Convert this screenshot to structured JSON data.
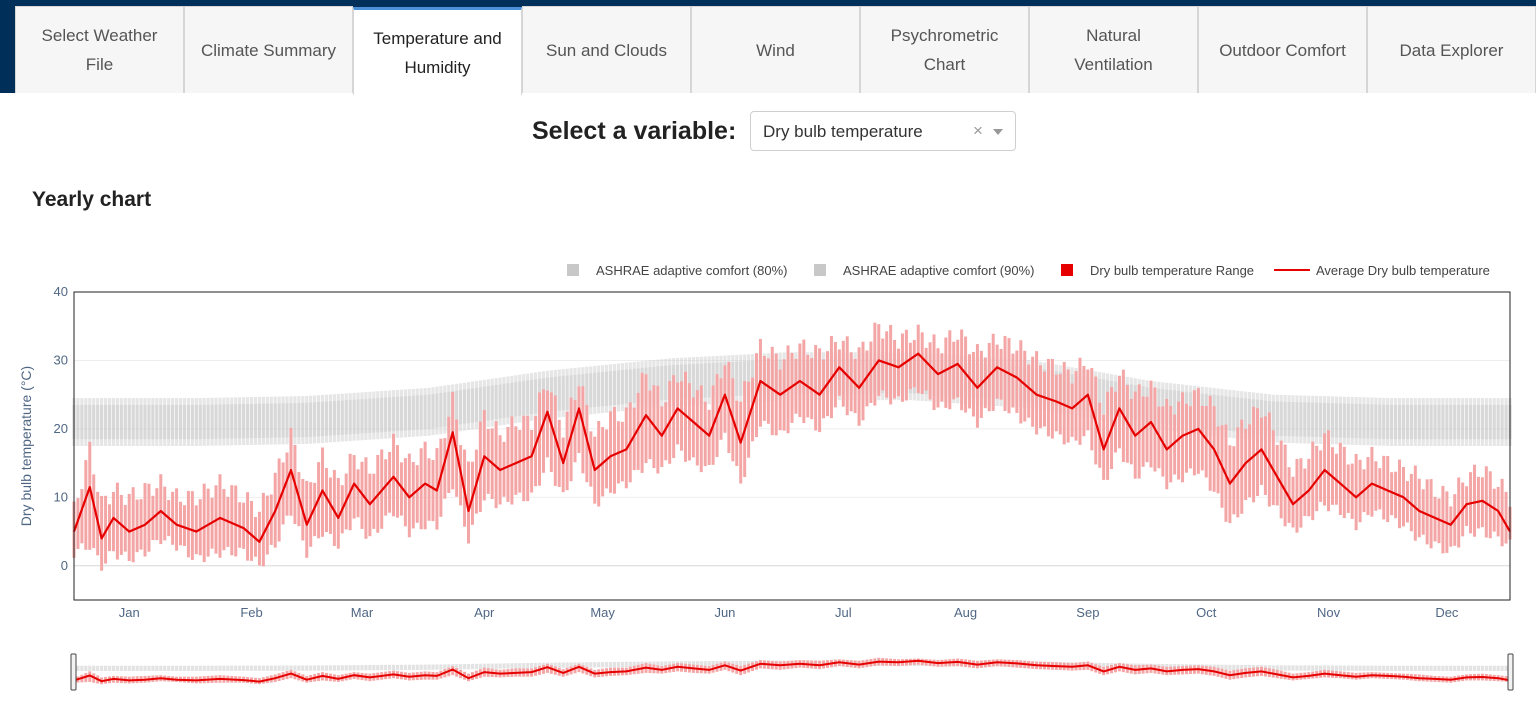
{
  "tabs": [
    {
      "label": "Select Weather\nFile",
      "active": false
    },
    {
      "label": "Climate Summary",
      "active": false
    },
    {
      "label": "Temperature and\nHumidity",
      "active": true
    },
    {
      "label": "Sun and Clouds",
      "active": false
    },
    {
      "label": "Wind",
      "active": false
    },
    {
      "label": "Psychrometric\nChart",
      "active": false
    },
    {
      "label": "Natural\nVentilation",
      "active": false
    },
    {
      "label": "Outdoor Comfort",
      "active": false
    },
    {
      "label": "Data Explorer",
      "active": false
    }
  ],
  "variable_selector": {
    "label": "Select a variable:",
    "value": "Dry bulb temperature",
    "clear_glyph": "×"
  },
  "section_title": "Yearly chart",
  "colors": {
    "nav_bg": "#00305a",
    "active_tab_accent": "#4a90d9",
    "comfort_band": "#c8c8c8",
    "range_bar": "#f4a6a6",
    "average_line": "#e60000"
  },
  "chart_data": {
    "type": "line",
    "ylabel": "Dry bulb temperature (°C)",
    "ylim": [
      -5,
      40
    ],
    "y_ticks": [
      0,
      10,
      20,
      30,
      40
    ],
    "x_ticks": [
      "Jan",
      "Feb",
      "Mar",
      "Apr",
      "May",
      "Jun",
      "Jul",
      "Aug",
      "Sep",
      "Oct",
      "Nov",
      "Dec"
    ],
    "legend_position": "top-right",
    "legend": [
      {
        "label": "ASHRAE adaptive comfort (80%)",
        "kind": "box",
        "color": "#c8c8c8"
      },
      {
        "label": "ASHRAE adaptive comfort (90%)",
        "kind": "box",
        "color": "#c8c8c8"
      },
      {
        "label": "Dry bulb temperature Range",
        "kind": "box",
        "color": "#e60000"
      },
      {
        "label": "Average Dry bulb temperature",
        "kind": "line",
        "color": "#e60000"
      }
    ],
    "comfort_80": {
      "days": [
        1,
        32,
        60,
        91,
        121,
        152,
        182,
        213,
        244,
        274,
        305,
        335,
        365
      ],
      "lower": [
        17.5,
        17.5,
        17.8,
        19.0,
        21.5,
        23.3,
        24.2,
        24.2,
        23.0,
        20.0,
        18.0,
        17.5,
        17.5
      ],
      "upper": [
        24.5,
        24.5,
        24.8,
        26.0,
        28.5,
        30.3,
        31.2,
        31.2,
        30.0,
        27.0,
        25.0,
        24.5,
        24.5
      ]
    },
    "comfort_90": {
      "days": [
        1,
        32,
        60,
        91,
        121,
        152,
        182,
        213,
        244,
        274,
        305,
        335,
        365
      ],
      "lower": [
        18.5,
        18.5,
        18.8,
        20.0,
        22.5,
        24.3,
        25.2,
        25.2,
        24.0,
        21.0,
        19.0,
        18.5,
        18.5
      ],
      "upper": [
        23.5,
        23.5,
        23.8,
        25.0,
        27.5,
        29.3,
        30.2,
        30.2,
        29.0,
        26.0,
        24.0,
        23.5,
        23.5
      ]
    },
    "series": [
      {
        "name": "Average Dry bulb temperature",
        "days": [
          1,
          5,
          8,
          11,
          15,
          19,
          23,
          27,
          32,
          38,
          44,
          48,
          52,
          56,
          60,
          64,
          68,
          72,
          76,
          82,
          86,
          90,
          93,
          97,
          101,
          105,
          109,
          113,
          117,
          121,
          125,
          129,
          133,
          137,
          141,
          146,
          150,
          154,
          158,
          162,
          166,
          170,
          175,
          180,
          185,
          190,
          195,
          200,
          205,
          210,
          215,
          220,
          225,
          230,
          235,
          240,
          245,
          250,
          254,
          258,
          262,
          266,
          270,
          274,
          278,
          282,
          286,
          290,
          294,
          298,
          302,
          306,
          310,
          314,
          318,
          322,
          326,
          330,
          334,
          338,
          342,
          346,
          350,
          354,
          358,
          362,
          365
        ],
        "values": [
          5,
          11.5,
          4,
          7,
          5,
          6,
          8,
          6,
          5,
          7,
          5.5,
          3.5,
          8,
          14,
          6,
          11,
          7,
          12,
          9,
          13,
          10,
          12,
          11,
          19.5,
          8,
          16,
          14,
          15,
          16,
          22.5,
          15,
          23,
          14,
          16,
          17,
          22,
          19,
          23,
          21,
          19,
          25,
          18,
          27,
          25,
          27,
          25,
          29,
          26,
          30,
          29,
          31,
          28,
          29.5,
          26,
          29,
          27.5,
          25,
          24,
          23,
          25,
          17,
          23,
          19,
          21,
          17,
          19,
          20,
          17,
          12,
          15,
          17,
          13,
          9,
          11,
          14,
          12,
          10,
          12,
          11,
          10,
          8,
          7,
          6,
          9,
          9.5,
          8,
          5
        ],
        "range_min": [
          2,
          3,
          0,
          2,
          1,
          2,
          4,
          3,
          1,
          2,
          2,
          0,
          3,
          8,
          2,
          5,
          3,
          7,
          4,
          8,
          5,
          6,
          6,
          12,
          4,
          10,
          9,
          10,
          10,
          15,
          10,
          16,
          9,
          11,
          12,
          15,
          14,
          17,
          15,
          14,
          19,
          12,
          21,
          19,
          22,
          20,
          24,
          21,
          25,
          24,
          26,
          23,
          24,
          21,
          24,
          22,
          20,
          19,
          18,
          19,
          12,
          17,
          13,
          15,
          12,
          13,
          14,
          11,
          6,
          9,
          11,
          8,
          5,
          7,
          9,
          8,
          6,
          8,
          7,
          6,
          4,
          3,
          2,
          5,
          5,
          4,
          3
        ],
        "range_max": [
          8,
          17,
          9,
          11,
          10,
          11,
          12,
          10,
          10,
          12,
          10,
          8,
          13,
          19,
          11,
          16,
          12,
          16,
          14,
          18,
          15,
          17,
          16,
          24,
          14,
          22,
          19,
          21,
          21,
          27,
          20,
          27,
          19,
          22,
          22,
          28,
          24,
          28,
          26,
          24,
          30,
          24,
          32,
          30,
          32,
          31,
          33,
          31,
          35,
          33,
          34,
          32,
          34,
          31,
          33,
          32,
          30,
          29,
          28,
          30,
          23,
          28,
          25,
          26,
          23,
          24,
          25,
          23,
          18,
          21,
          23,
          19,
          14,
          16,
          19,
          17,
          15,
          16,
          15,
          14,
          13,
          11,
          10,
          13,
          14,
          12,
          10
        ]
      }
    ]
  }
}
